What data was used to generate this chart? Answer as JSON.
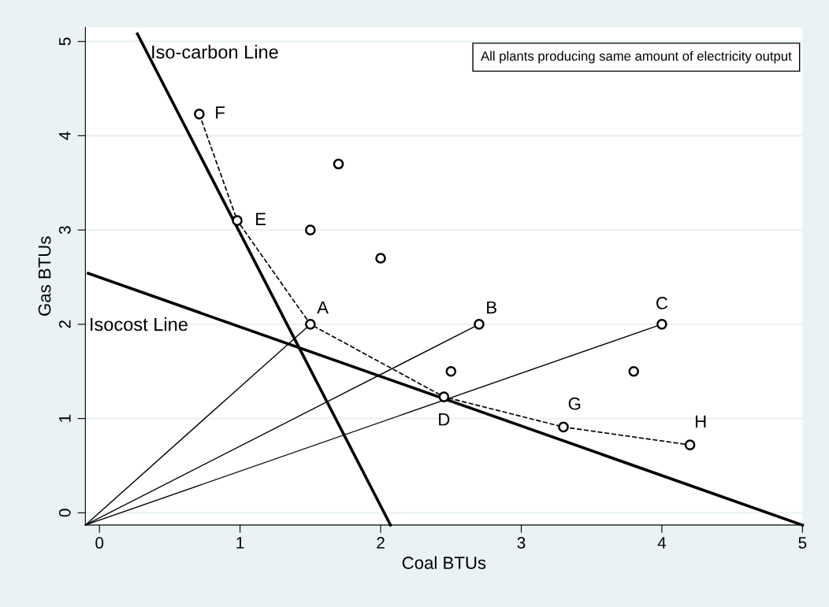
{
  "chart_data": {
    "type": "line",
    "xlabel": "Coal BTUs",
    "ylabel": "Gas BTUs",
    "xlim": [
      -0.1,
      5
    ],
    "ylim": [
      -0.13,
      5.15
    ],
    "xticks": [
      0,
      1,
      2,
      3,
      4,
      5
    ],
    "yticks": [
      0,
      1,
      2,
      3,
      4,
      5
    ],
    "grid": "y",
    "legend": false,
    "series": [
      {
        "color": "#000000",
        "x": [
          0.27,
          2.07
        ],
        "values": [
          5.08,
          -0.13
        ]
      },
      {
        "color": "#000000",
        "x": [
          -0.08,
          5.0
        ],
        "values": [
          2.54,
          -0.13
        ]
      },
      {
        "color": "#000000",
        "x": [
          -0.1,
          1.5
        ],
        "values": [
          -0.13,
          2.0
        ]
      },
      {
        "color": "#000000",
        "x": [
          -0.1,
          2.7
        ],
        "values": [
          -0.13,
          2.0
        ]
      },
      {
        "color": "#000000",
        "x": [
          -0.1,
          4.0
        ],
        "values": [
          -0.13,
          2.0
        ]
      },
      {
        "color": "#000000",
        "line_style": "dashed",
        "marker": "circle",
        "x": [
          0.71,
          0.98,
          1.5,
          2.45,
          3.3,
          4.2
        ],
        "values": [
          4.23,
          3.1,
          2.0,
          1.23,
          0.91,
          0.72
        ]
      },
      {
        "type": "scatter",
        "color": "#000000",
        "marker": "circle",
        "x": [
          1.7,
          1.5,
          2.0,
          2.5,
          3.8,
          2.7,
          4.0
        ],
        "values": [
          3.7,
          3.0,
          2.7,
          1.5,
          1.5,
          2.0,
          2.0
        ]
      }
    ],
    "annotations": [
      {
        "text": "Iso-carbon Line",
        "x": 0.27,
        "y": 5.08
      },
      "Isocost Line",
      {
        "text": "F",
        "x": 0.71,
        "y": 4.23
      },
      {
        "text": "E",
        "x": 0.98,
        "y": 3.1
      },
      {
        "text": "A",
        "x": 1.5,
        "y": 2.0
      },
      {
        "text": "B",
        "x": 2.7,
        "y": 2.0
      },
      {
        "text": "C",
        "x": 4.0,
        "y": 2.0
      },
      {
        "text": "D",
        "x": 2.45,
        "y": 1.23
      },
      {
        "text": "G",
        "x": 3.3,
        "y": 0.91
      },
      {
        "text": "H",
        "x": 4.2,
        "y": 0.72
      },
      "All plants producing same amount of electricity output"
    ]
  }
}
